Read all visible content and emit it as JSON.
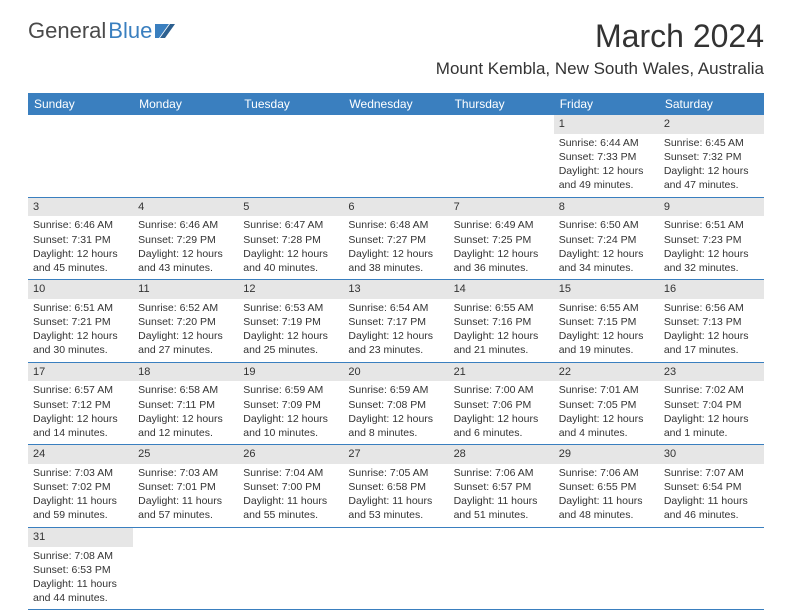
{
  "logo": {
    "text1": "General",
    "text2": "Blue"
  },
  "title": "March 2024",
  "location": "Mount Kembla, New South Wales, Australia",
  "colors": {
    "header_bg": "#3a7fbf",
    "header_text": "#ffffff",
    "daynum_bg": "#e6e6e6",
    "border": "#3a7fbf"
  },
  "weekdays": [
    "Sunday",
    "Monday",
    "Tuesday",
    "Wednesday",
    "Thursday",
    "Friday",
    "Saturday"
  ],
  "weeks": [
    [
      null,
      null,
      null,
      null,
      null,
      {
        "n": "1",
        "sunrise": "Sunrise: 6:44 AM",
        "sunset": "Sunset: 7:33 PM",
        "daylight": "Daylight: 12 hours and 49 minutes."
      },
      {
        "n": "2",
        "sunrise": "Sunrise: 6:45 AM",
        "sunset": "Sunset: 7:32 PM",
        "daylight": "Daylight: 12 hours and 47 minutes."
      }
    ],
    [
      {
        "n": "3",
        "sunrise": "Sunrise: 6:46 AM",
        "sunset": "Sunset: 7:31 PM",
        "daylight": "Daylight: 12 hours and 45 minutes."
      },
      {
        "n": "4",
        "sunrise": "Sunrise: 6:46 AM",
        "sunset": "Sunset: 7:29 PM",
        "daylight": "Daylight: 12 hours and 43 minutes."
      },
      {
        "n": "5",
        "sunrise": "Sunrise: 6:47 AM",
        "sunset": "Sunset: 7:28 PM",
        "daylight": "Daylight: 12 hours and 40 minutes."
      },
      {
        "n": "6",
        "sunrise": "Sunrise: 6:48 AM",
        "sunset": "Sunset: 7:27 PM",
        "daylight": "Daylight: 12 hours and 38 minutes."
      },
      {
        "n": "7",
        "sunrise": "Sunrise: 6:49 AM",
        "sunset": "Sunset: 7:25 PM",
        "daylight": "Daylight: 12 hours and 36 minutes."
      },
      {
        "n": "8",
        "sunrise": "Sunrise: 6:50 AM",
        "sunset": "Sunset: 7:24 PM",
        "daylight": "Daylight: 12 hours and 34 minutes."
      },
      {
        "n": "9",
        "sunrise": "Sunrise: 6:51 AM",
        "sunset": "Sunset: 7:23 PM",
        "daylight": "Daylight: 12 hours and 32 minutes."
      }
    ],
    [
      {
        "n": "10",
        "sunrise": "Sunrise: 6:51 AM",
        "sunset": "Sunset: 7:21 PM",
        "daylight": "Daylight: 12 hours and 30 minutes."
      },
      {
        "n": "11",
        "sunrise": "Sunrise: 6:52 AM",
        "sunset": "Sunset: 7:20 PM",
        "daylight": "Daylight: 12 hours and 27 minutes."
      },
      {
        "n": "12",
        "sunrise": "Sunrise: 6:53 AM",
        "sunset": "Sunset: 7:19 PM",
        "daylight": "Daylight: 12 hours and 25 minutes."
      },
      {
        "n": "13",
        "sunrise": "Sunrise: 6:54 AM",
        "sunset": "Sunset: 7:17 PM",
        "daylight": "Daylight: 12 hours and 23 minutes."
      },
      {
        "n": "14",
        "sunrise": "Sunrise: 6:55 AM",
        "sunset": "Sunset: 7:16 PM",
        "daylight": "Daylight: 12 hours and 21 minutes."
      },
      {
        "n": "15",
        "sunrise": "Sunrise: 6:55 AM",
        "sunset": "Sunset: 7:15 PM",
        "daylight": "Daylight: 12 hours and 19 minutes."
      },
      {
        "n": "16",
        "sunrise": "Sunrise: 6:56 AM",
        "sunset": "Sunset: 7:13 PM",
        "daylight": "Daylight: 12 hours and 17 minutes."
      }
    ],
    [
      {
        "n": "17",
        "sunrise": "Sunrise: 6:57 AM",
        "sunset": "Sunset: 7:12 PM",
        "daylight": "Daylight: 12 hours and 14 minutes."
      },
      {
        "n": "18",
        "sunrise": "Sunrise: 6:58 AM",
        "sunset": "Sunset: 7:11 PM",
        "daylight": "Daylight: 12 hours and 12 minutes."
      },
      {
        "n": "19",
        "sunrise": "Sunrise: 6:59 AM",
        "sunset": "Sunset: 7:09 PM",
        "daylight": "Daylight: 12 hours and 10 minutes."
      },
      {
        "n": "20",
        "sunrise": "Sunrise: 6:59 AM",
        "sunset": "Sunset: 7:08 PM",
        "daylight": "Daylight: 12 hours and 8 minutes."
      },
      {
        "n": "21",
        "sunrise": "Sunrise: 7:00 AM",
        "sunset": "Sunset: 7:06 PM",
        "daylight": "Daylight: 12 hours and 6 minutes."
      },
      {
        "n": "22",
        "sunrise": "Sunrise: 7:01 AM",
        "sunset": "Sunset: 7:05 PM",
        "daylight": "Daylight: 12 hours and 4 minutes."
      },
      {
        "n": "23",
        "sunrise": "Sunrise: 7:02 AM",
        "sunset": "Sunset: 7:04 PM",
        "daylight": "Daylight: 12 hours and 1 minute."
      }
    ],
    [
      {
        "n": "24",
        "sunrise": "Sunrise: 7:03 AM",
        "sunset": "Sunset: 7:02 PM",
        "daylight": "Daylight: 11 hours and 59 minutes."
      },
      {
        "n": "25",
        "sunrise": "Sunrise: 7:03 AM",
        "sunset": "Sunset: 7:01 PM",
        "daylight": "Daylight: 11 hours and 57 minutes."
      },
      {
        "n": "26",
        "sunrise": "Sunrise: 7:04 AM",
        "sunset": "Sunset: 7:00 PM",
        "daylight": "Daylight: 11 hours and 55 minutes."
      },
      {
        "n": "27",
        "sunrise": "Sunrise: 7:05 AM",
        "sunset": "Sunset: 6:58 PM",
        "daylight": "Daylight: 11 hours and 53 minutes."
      },
      {
        "n": "28",
        "sunrise": "Sunrise: 7:06 AM",
        "sunset": "Sunset: 6:57 PM",
        "daylight": "Daylight: 11 hours and 51 minutes."
      },
      {
        "n": "29",
        "sunrise": "Sunrise: 7:06 AM",
        "sunset": "Sunset: 6:55 PM",
        "daylight": "Daylight: 11 hours and 48 minutes."
      },
      {
        "n": "30",
        "sunrise": "Sunrise: 7:07 AM",
        "sunset": "Sunset: 6:54 PM",
        "daylight": "Daylight: 11 hours and 46 minutes."
      }
    ],
    [
      {
        "n": "31",
        "sunrise": "Sunrise: 7:08 AM",
        "sunset": "Sunset: 6:53 PM",
        "daylight": "Daylight: 11 hours and 44 minutes."
      },
      null,
      null,
      null,
      null,
      null,
      null
    ]
  ]
}
